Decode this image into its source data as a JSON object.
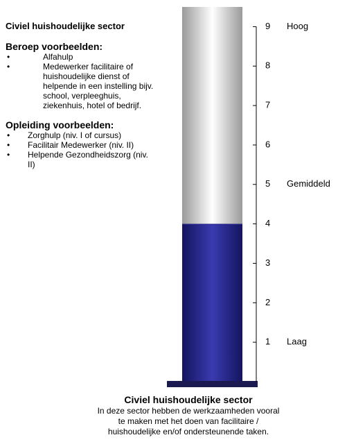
{
  "info": {
    "title": "Civiel huishoudelijke sector",
    "sections": [
      {
        "heading": "Beroep voorbeelden:",
        "items": [
          "Alfahulp",
          "Medewerker facilitaire of huishoudelijke dienst of helpende in een instelling bijv. school, verpleeghuis, ziekenhuis, hotel of bedrijf."
        ]
      },
      {
        "heading": "Opleiding voorbeelden:",
        "items": [
          "Zorghulp (niv. I of cursus)",
          "Facilitair Medewerker (niv. II)",
          "Helpende Gezondheidszorg (niv. II)"
        ]
      }
    ]
  },
  "chart_data": {
    "type": "gauge",
    "title": "Civiel huishoudelijke sector",
    "subtitle": "In deze sector hebben de werkzaamheden vooral te maken met het doen van facilitaire / huishoudelijke en/of ondersteunende taken.",
    "value": 4,
    "color": "#2b2b8f",
    "ylim": [
      0,
      9.5
    ],
    "yticks": [
      1,
      2,
      3,
      4,
      5,
      6,
      7,
      8,
      9
    ],
    "level_labels": [
      {
        "value": 9,
        "label": "Hoog"
      },
      {
        "value": 5,
        "label": "Gemiddeld"
      },
      {
        "value": 1,
        "label": "Laag"
      }
    ]
  }
}
